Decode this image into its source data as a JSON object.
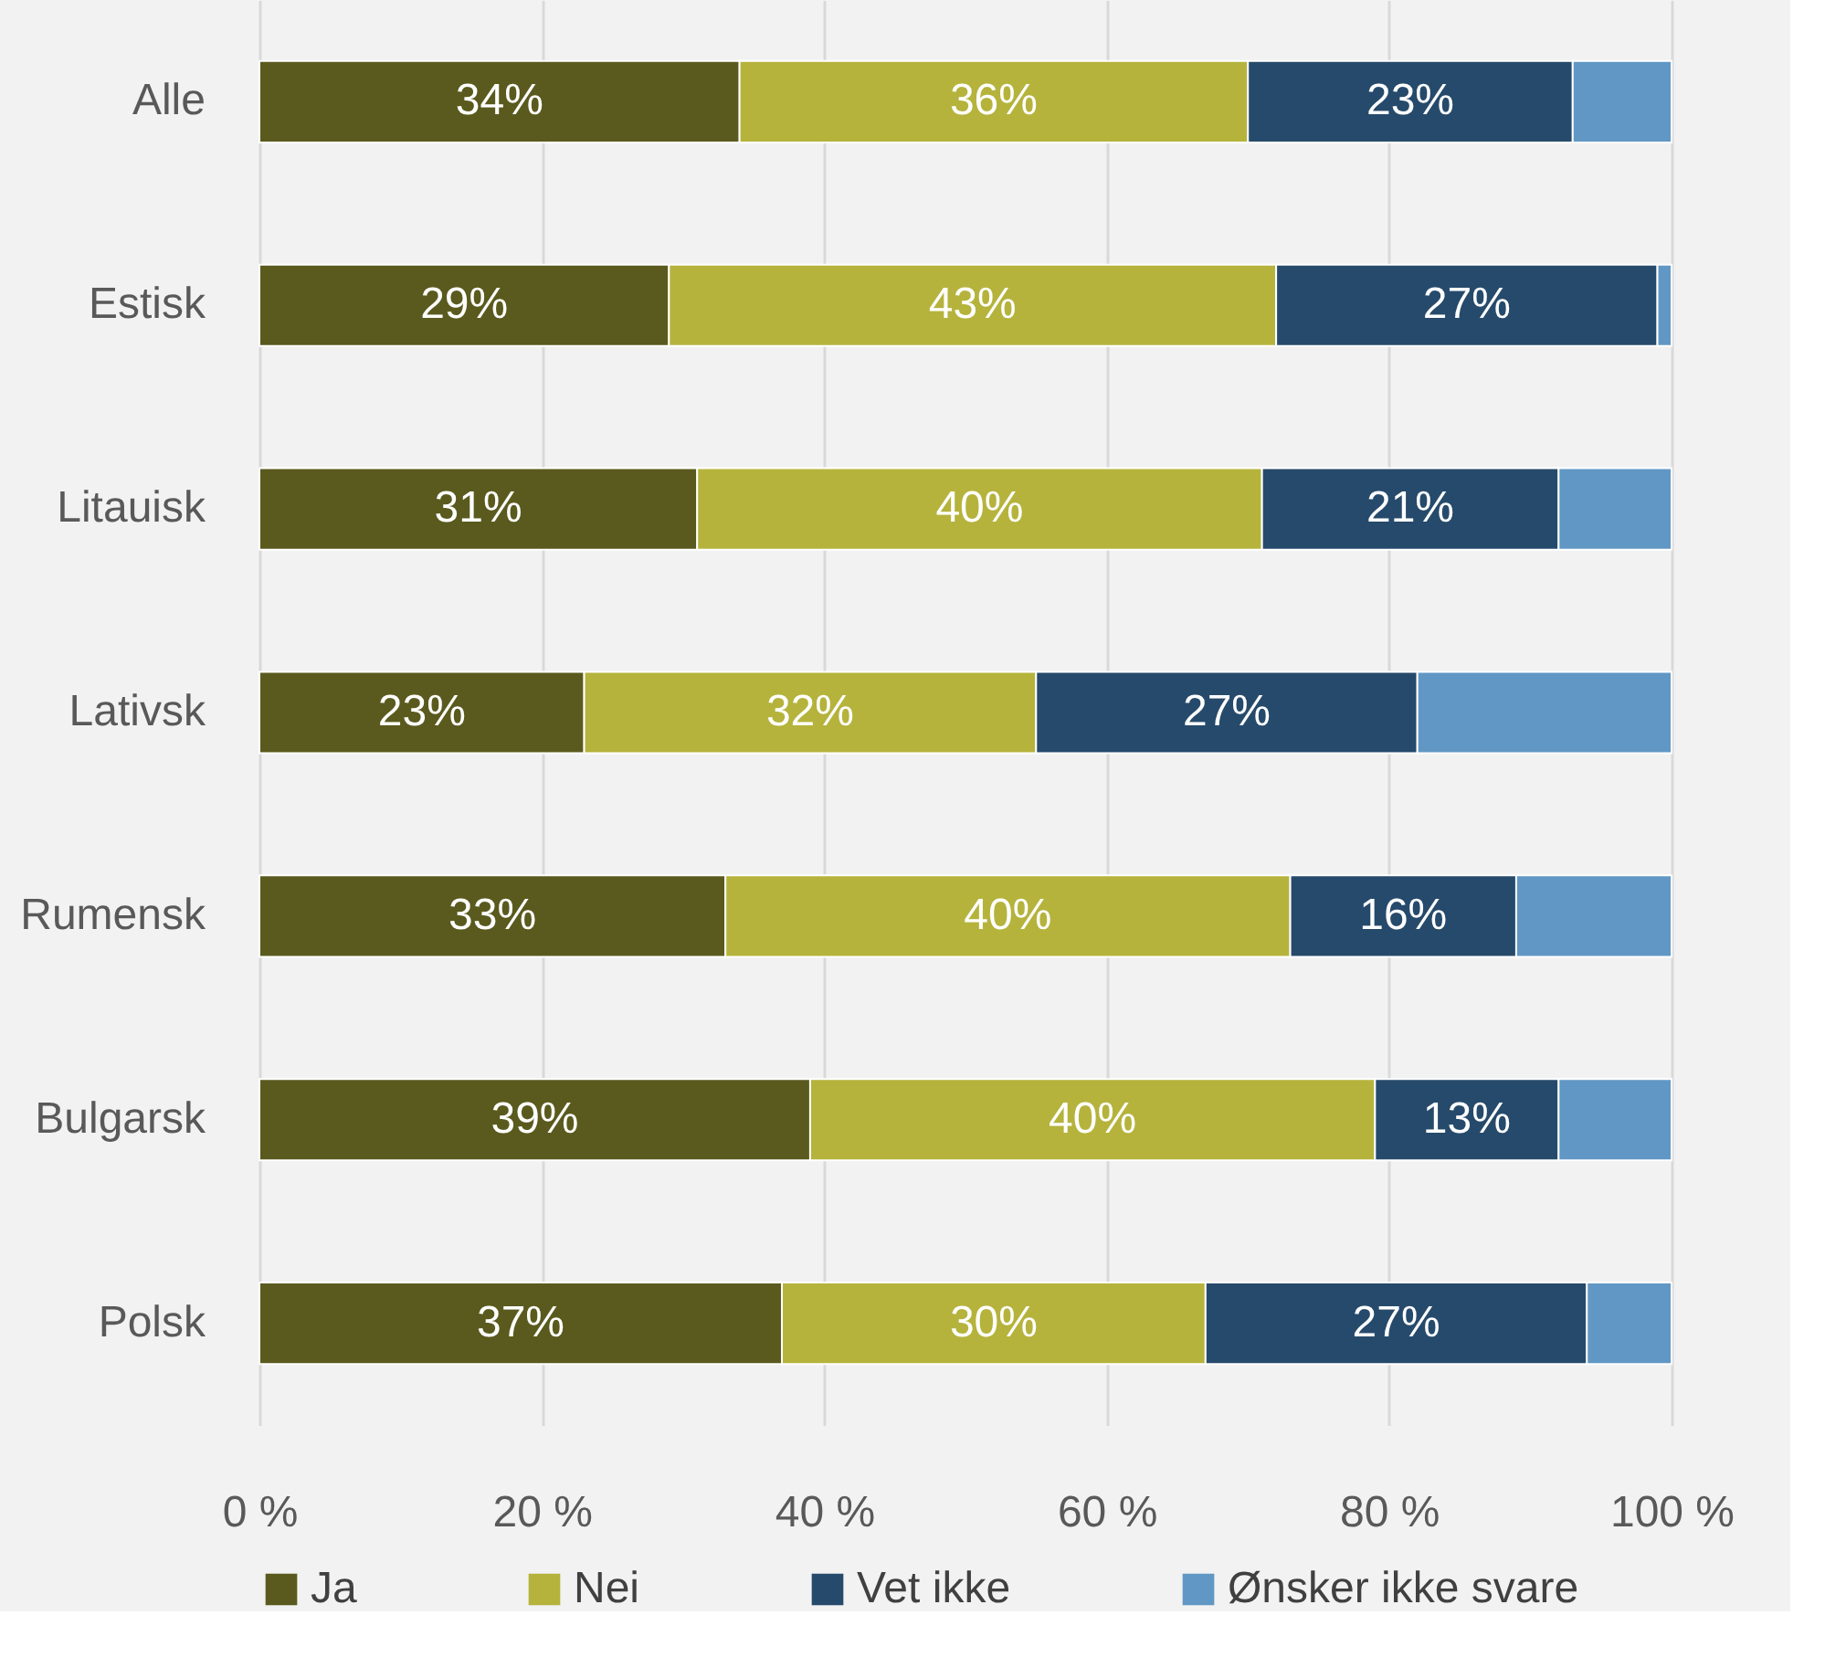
{
  "chart_data": {
    "type": "bar",
    "orientation": "horizontal",
    "stacked": true,
    "categories": [
      "Alle",
      "Estisk",
      "Litauisk",
      "Lativsk",
      "Rumensk",
      "Bulgarsk",
      "Polsk"
    ],
    "series": [
      {
        "name": "Ja",
        "color": "#5a5a1e",
        "values": [
          34,
          29,
          31,
          23,
          33,
          39,
          37
        ],
        "value_labels": [
          "34%",
          "29%",
          "31%",
          "23%",
          "33%",
          "39%",
          "37%"
        ]
      },
      {
        "name": "Nei",
        "color": "#b5b33c",
        "values": [
          36,
          43,
          40,
          32,
          40,
          40,
          30
        ],
        "value_labels": [
          "36%",
          "43%",
          "40%",
          "32%",
          "40%",
          "40%",
          "30%"
        ]
      },
      {
        "name": "Vet ikke",
        "color": "#264a6b",
        "values": [
          23,
          27,
          21,
          27,
          16,
          13,
          27
        ],
        "value_labels": [
          "23%",
          "27%",
          "21%",
          "27%",
          "16%",
          "13%",
          "27%"
        ]
      },
      {
        "name": "Ønsker ikke svare",
        "color": "#6197c4",
        "values": [
          7,
          1,
          8,
          18,
          11,
          8,
          6
        ],
        "value_labels": [
          null,
          null,
          null,
          null,
          null,
          null,
          null
        ]
      }
    ],
    "xlim": [
      0,
      100
    ],
    "xticks": [
      {
        "value": 0,
        "label": "0 %"
      },
      {
        "value": 20,
        "label": "20 %"
      },
      {
        "value": 40,
        "label": "40 %"
      },
      {
        "value": 60,
        "label": "60 %"
      },
      {
        "value": 80,
        "label": "80 %"
      },
      {
        "value": 100,
        "label": "100 %"
      }
    ],
    "grid": "x",
    "legend": "bottom"
  }
}
